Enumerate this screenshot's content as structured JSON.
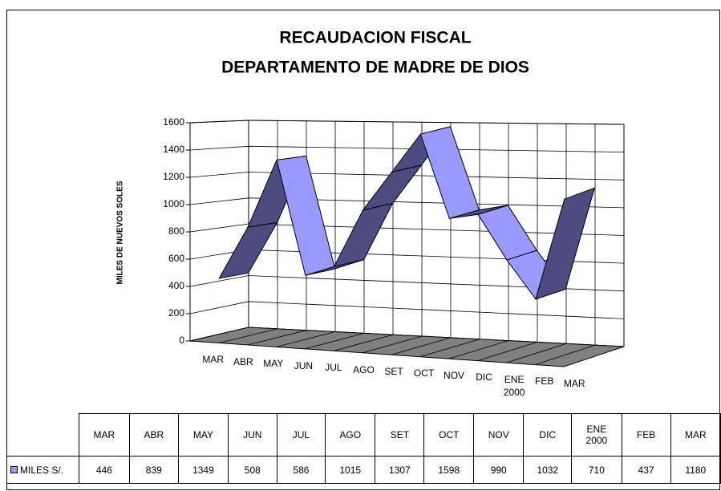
{
  "chart_data": {
    "type": "ribbon3d",
    "title": [
      "RECAUDACION FISCAL",
      "DEPARTAMENTO DE MADRE DE DIOS"
    ],
    "y_axis_label": "MILES DE NUEVOS SOLES",
    "categories": [
      "MAR",
      "ABR",
      "MAY",
      "JUN",
      "JUL",
      "AGO",
      "SET",
      "OCT",
      "NOV",
      "DIC",
      "ENE 2000",
      "FEB",
      "MAR"
    ],
    "series": [
      {
        "name": "MILES S/.",
        "color": "#9999ff",
        "values": [
          446,
          839,
          1349,
          508,
          586,
          1015,
          1307,
          1598,
          990,
          1032,
          710,
          437,
          1180
        ]
      }
    ],
    "ylim": [
      0,
      1600
    ],
    "yticks": [
      0,
      200,
      400,
      600,
      800,
      1000,
      1200,
      1400,
      1600
    ],
    "grid": true
  }
}
